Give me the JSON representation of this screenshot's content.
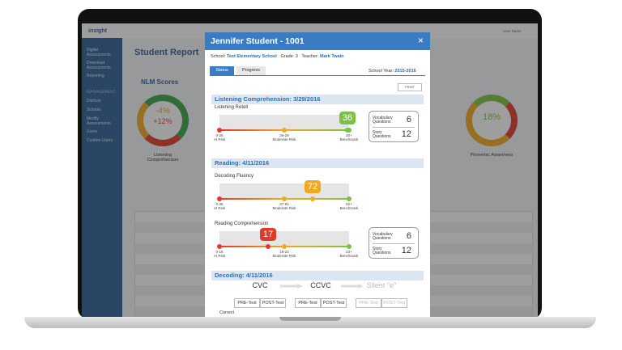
{
  "app": {
    "logo": "insight",
    "user": "User Name",
    "menu": [
      "Digital Assessments",
      "Download Assessments",
      "Reporting"
    ],
    "management_heading": "MANAGEMENT",
    "management": [
      "Districts",
      "Schools",
      "Modify Assessments",
      "Users",
      "Confirm Users"
    ]
  },
  "report": {
    "title": "Student Report",
    "section": "NLM Scores",
    "gauges": [
      {
        "value": "-4%",
        "sub": "+12%",
        "label": "Listening Comprehension"
      },
      {
        "value": "18%",
        "label": "Phonemic Awareness"
      }
    ]
  },
  "modal": {
    "title": "Jennifer Student - 1001",
    "close": "×",
    "school_label": "School:",
    "school": "Test Elementary School",
    "grade_label": "Grade:",
    "grade": "3",
    "teacher_label": "Teacher:",
    "teacher": "Mark Twain",
    "tabs": [
      "Status",
      "Progress"
    ],
    "year_label": "School Year:",
    "year": "2015-2016",
    "print": "PRINT",
    "sections": [
      {
        "heading": "Listening Comprehension: 3/29/2016",
        "measures": [
          {
            "name": "Listening Retell",
            "score": 36,
            "ranges": [
              {
                "range": "0-25",
                "label": "At Risk"
              },
              {
                "range": "26-29",
                "label": "Moderate Risk"
              },
              {
                "range": "30+",
                "label": "Benchmark"
              }
            ],
            "questions": [
              {
                "label": "Vocabulary Questions",
                "value": 6
              },
              {
                "label": "Story Questions",
                "value": 12
              }
            ]
          }
        ]
      },
      {
        "heading": "Reading: 4/11/2016",
        "measures": [
          {
            "name": "Decoding Fluency",
            "score": 72,
            "ranges": [
              {
                "range": "0-36",
                "label": "At Risk"
              },
              {
                "range": "37-81",
                "label": "Moderate Risk"
              },
              {
                "range": "82+",
                "label": "Benchmark"
              }
            ]
          },
          {
            "name": "Reading Comprehension",
            "score": 17,
            "ranges": [
              {
                "range": "0-18",
                "label": "At Risk"
              },
              {
                "range": "19-22",
                "label": "Moderate Risk"
              },
              {
                "range": "23+",
                "label": "Benchmark"
              }
            ],
            "questions": [
              {
                "label": "Vocabulary Questions",
                "value": 6
              },
              {
                "label": "Story Questions",
                "value": 12
              }
            ]
          }
        ]
      },
      {
        "heading": "Decoding: 4/11/2016",
        "stages": [
          "CVC",
          "CCVC",
          "Silent \"e\""
        ],
        "tests": [
          "PRE-Test",
          "POST-Test"
        ],
        "row_label": "Correct"
      }
    ]
  }
}
